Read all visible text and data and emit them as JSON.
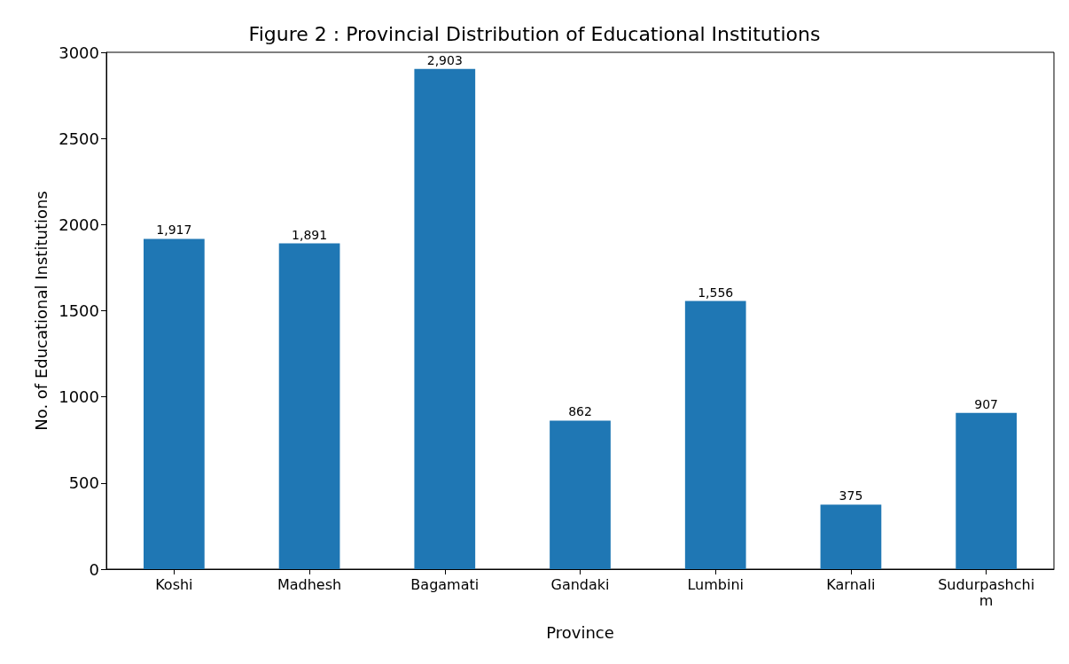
{
  "chart_data": {
    "type": "bar",
    "title": "Figure 2 : Provincial Distribution of Educational Institutions",
    "xlabel": "Province",
    "ylabel": "No. of Educational Institutions",
    "categories": [
      "Koshi",
      "Madhesh",
      "Bagamati",
      "Gandaki",
      "Lumbini",
      "Karnali",
      "Sudurpashchim"
    ],
    "values": [
      1917,
      1891,
      2903,
      862,
      1556,
      375,
      907
    ],
    "value_labels": [
      "1,917",
      "1,891",
      "2,903",
      "862",
      "1,556",
      "375",
      "907"
    ],
    "color": "#1f77b4",
    "ylim": [
      0,
      3000
    ],
    "yticks": [
      0,
      500,
      1000,
      1500,
      2000,
      2500,
      3000
    ],
    "grid": false
  }
}
